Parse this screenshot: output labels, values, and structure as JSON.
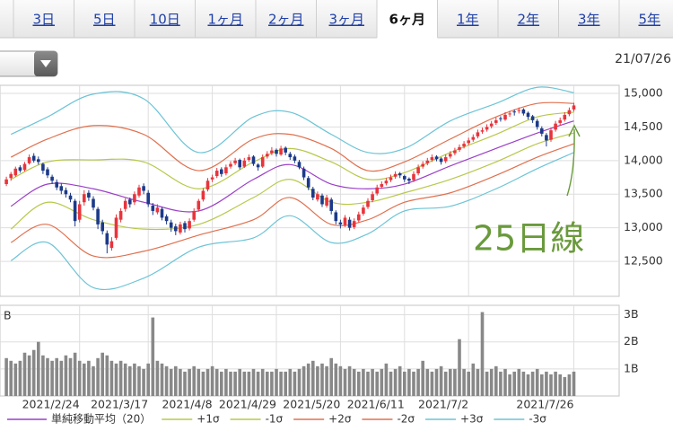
{
  "tabs": [
    "3日",
    "5日",
    "10日",
    "1ヶ月",
    "2ヶ月",
    "3ヶ月",
    "6ヶ月",
    "1年",
    "2年",
    "3年",
    "5年"
  ],
  "selected_tab": 6,
  "date": "21/07/26",
  "chart_data": {
    "type": "candlestick",
    "categories": [
      null,
      null,
      null,
      null,
      null,
      null,
      null,
      null,
      null,
      null,
      null,
      null,
      null,
      null,
      null,
      null,
      "2021/2/24",
      null,
      null,
      null,
      null,
      null,
      null,
      null,
      null,
      null,
      null,
      null,
      null,
      null,
      null,
      "2021/3/17",
      null,
      null,
      null,
      null,
      null,
      null,
      null,
      null,
      null,
      null,
      null,
      null,
      null,
      "2021/4/8",
      null,
      null,
      null,
      null,
      null,
      null,
      null,
      null,
      null,
      null,
      null,
      null,
      null,
      "2021/4/29",
      null,
      null,
      null,
      null,
      null,
      null,
      null,
      null,
      null,
      null,
      null,
      null,
      null,
      "2021/5/20",
      null,
      null,
      null,
      null,
      null,
      null,
      null,
      null,
      null,
      null,
      null,
      null,
      null,
      "2021/6/11",
      null,
      null,
      null,
      null,
      null,
      null,
      null,
      null,
      null,
      null,
      null,
      null,
      null,
      "2021/7/2",
      null,
      null,
      null,
      null,
      null,
      null,
      null,
      null,
      null,
      null,
      null,
      null,
      null,
      null,
      null,
      null,
      null,
      null,
      null,
      null,
      null,
      null,
      "2021/7/26"
    ],
    "ohlc": [
      [
        13650,
        13760,
        13620,
        13720
      ],
      [
        13740,
        13830,
        13700,
        13800
      ],
      [
        13780,
        13910,
        13760,
        13880
      ],
      [
        13900,
        13930,
        13820,
        13850
      ],
      [
        13860,
        13980,
        13840,
        13950
      ],
      [
        13960,
        14090,
        13940,
        14050
      ],
      [
        14070,
        14110,
        13970,
        14000
      ],
      [
        14020,
        14060,
        13940,
        13980
      ],
      [
        13950,
        13970,
        13800,
        13850
      ],
      [
        13870,
        13900,
        13740,
        13780
      ],
      [
        13760,
        13790,
        13650,
        13700
      ],
      [
        13680,
        13720,
        13560,
        13600
      ],
      [
        13620,
        13660,
        13500,
        13550
      ],
      [
        13560,
        13600,
        13450,
        13500
      ],
      [
        13480,
        13520,
        13380,
        13420
      ],
      [
        13400,
        13430,
        13020,
        13100
      ],
      [
        13120,
        13400,
        13080,
        13350
      ],
      [
        13380,
        13560,
        13330,
        13500
      ],
      [
        13520,
        13560,
        13400,
        13450
      ],
      [
        13430,
        13470,
        13260,
        13300
      ],
      [
        13280,
        13310,
        12980,
        13050
      ],
      [
        13080,
        13120,
        12900,
        12950
      ],
      [
        12920,
        12960,
        12620,
        12750
      ],
      [
        12700,
        12860,
        12660,
        12800
      ],
      [
        12850,
        13200,
        12820,
        13150
      ],
      [
        13120,
        13290,
        13080,
        13250
      ],
      [
        13280,
        13440,
        13240,
        13400
      ],
      [
        13420,
        13450,
        13300,
        13350
      ],
      [
        13380,
        13540,
        13340,
        13500
      ],
      [
        13480,
        13640,
        13450,
        13600
      ],
      [
        13620,
        13660,
        13500,
        13550
      ],
      [
        13520,
        13560,
        13310,
        13350
      ],
      [
        13330,
        13370,
        13190,
        13250
      ],
      [
        13230,
        13350,
        13200,
        13300
      ],
      [
        13280,
        13310,
        13110,
        13150
      ],
      [
        13170,
        13200,
        13050,
        13100
      ],
      [
        13080,
        13120,
        12940,
        13000
      ],
      [
        13020,
        13060,
        12890,
        12950
      ],
      [
        12930,
        13090,
        12900,
        13050
      ],
      [
        13070,
        13100,
        12930,
        12980
      ],
      [
        12990,
        13140,
        12960,
        13100
      ],
      [
        13120,
        13290,
        13090,
        13250
      ],
      [
        13270,
        13430,
        13240,
        13400
      ],
      [
        13420,
        13590,
        13390,
        13550
      ],
      [
        13570,
        13740,
        13540,
        13700
      ],
      [
        13720,
        13790,
        13680,
        13750
      ],
      [
        13770,
        13890,
        13740,
        13850
      ],
      [
        13870,
        13900,
        13760,
        13800
      ],
      [
        13810,
        13940,
        13780,
        13900
      ],
      [
        13910,
        13990,
        13880,
        13950
      ],
      [
        13960,
        14040,
        13930,
        14000
      ],
      [
        14010,
        14030,
        13870,
        13900
      ],
      [
        13910,
        14040,
        13890,
        14000
      ],
      [
        14010,
        14090,
        13980,
        14050
      ],
      [
        14060,
        14080,
        13920,
        13950
      ],
      [
        13940,
        13960,
        13850,
        13900
      ],
      [
        13910,
        14090,
        13890,
        14050
      ],
      [
        14060,
        14140,
        14030,
        14100
      ],
      [
        14110,
        14200,
        14080,
        14150
      ],
      [
        14160,
        14180,
        14060,
        14100
      ],
      [
        14090,
        14220,
        14070,
        14180
      ],
      [
        14190,
        14210,
        14080,
        14120
      ],
      [
        14100,
        14130,
        14010,
        14050
      ],
      [
        14060,
        14090,
        13960,
        14000
      ],
      [
        13980,
        14010,
        13870,
        13900
      ],
      [
        13880,
        13910,
        13710,
        13750
      ],
      [
        13740,
        13770,
        13560,
        13600
      ],
      [
        13580,
        13610,
        13410,
        13450
      ],
      [
        13420,
        13540,
        13390,
        13500
      ],
      [
        13480,
        13510,
        13310,
        13350
      ],
      [
        13330,
        13490,
        13300,
        13450
      ],
      [
        13420,
        13450,
        13200,
        13250
      ],
      [
        13230,
        13260,
        13050,
        13100
      ],
      [
        13080,
        13120,
        12990,
        13050
      ],
      [
        13040,
        13190,
        13010,
        13150
      ],
      [
        13120,
        13160,
        12960,
        13000
      ],
      [
        13010,
        13140,
        12980,
        13100
      ],
      [
        13110,
        13240,
        13080,
        13200
      ],
      [
        13210,
        13340,
        13180,
        13300
      ],
      [
        13310,
        13440,
        13280,
        13400
      ],
      [
        13410,
        13540,
        13380,
        13500
      ],
      [
        13510,
        13640,
        13480,
        13600
      ],
      [
        13610,
        13690,
        13580,
        13650
      ],
      [
        13660,
        13740,
        13630,
        13700
      ],
      [
        13710,
        13790,
        13680,
        13750
      ],
      [
        13760,
        13840,
        13730,
        13800
      ],
      [
        13810,
        13830,
        13740,
        13780
      ],
      [
        13770,
        13790,
        13680,
        13720
      ],
      [
        13730,
        13750,
        13650,
        13700
      ],
      [
        13710,
        13840,
        13680,
        13800
      ],
      [
        13810,
        13940,
        13780,
        13900
      ],
      [
        13910,
        13990,
        13880,
        13950
      ],
      [
        13960,
        14040,
        13930,
        14000
      ],
      [
        14010,
        14090,
        13980,
        14050
      ],
      [
        14060,
        14080,
        13990,
        14020
      ],
      [
        14030,
        14050,
        13940,
        13980
      ],
      [
        13990,
        14090,
        13960,
        14050
      ],
      [
        14060,
        14140,
        14030,
        14100
      ],
      [
        14110,
        14190,
        14080,
        14150
      ],
      [
        14160,
        14240,
        14130,
        14200
      ],
      [
        14210,
        14290,
        14180,
        14250
      ],
      [
        14260,
        14340,
        14230,
        14300
      ],
      [
        14310,
        14390,
        14280,
        14350
      ],
      [
        14360,
        14460,
        14330,
        14420
      ],
      [
        14430,
        14490,
        14400,
        14450
      ],
      [
        14460,
        14540,
        14430,
        14500
      ],
      [
        14510,
        14590,
        14480,
        14550
      ],
      [
        14560,
        14640,
        14530,
        14600
      ],
      [
        14630,
        14660,
        14580,
        14620
      ],
      [
        14610,
        14720,
        14590,
        14680
      ],
      [
        14690,
        14740,
        14650,
        14700
      ],
      [
        14730,
        14760,
        14670,
        14720
      ],
      [
        14740,
        14790,
        14700,
        14750
      ],
      [
        14760,
        14780,
        14670,
        14700
      ],
      [
        14710,
        14730,
        14610,
        14650
      ],
      [
        14660,
        14680,
        14560,
        14600
      ],
      [
        14590,
        14620,
        14460,
        14500
      ],
      [
        14480,
        14510,
        14360,
        14400
      ],
      [
        14380,
        14410,
        14210,
        14300
      ],
      [
        14310,
        14490,
        14280,
        14450
      ],
      [
        14460,
        14590,
        14430,
        14550
      ],
      [
        14560,
        14640,
        14530,
        14600
      ],
      [
        14610,
        14720,
        14580,
        14680
      ],
      [
        14690,
        14790,
        14660,
        14750
      ],
      [
        14760,
        14860,
        14730,
        14820
      ]
    ],
    "up_color": "#e8343c",
    "down_color": "#1c3a8a",
    "ylim": [
      11980,
      15120
    ],
    "yticks": [
      {
        "value": 12500,
        "label": "12,500"
      },
      {
        "value": 13000,
        "label": "13,000"
      },
      {
        "value": 13500,
        "label": "13,500"
      },
      {
        "value": 14000,
        "label": "14,000"
      },
      {
        "value": 14500,
        "label": "14,500"
      },
      {
        "value": 15000,
        "label": "15,000"
      }
    ],
    "grid": true,
    "band_x": [
      1,
      9,
      19,
      30,
      42,
      54,
      62,
      71,
      79,
      87,
      97,
      107,
      116,
      124
    ],
    "bands": [
      {
        "name": "単純移動平均（20）",
        "color": "#9b3fc8",
        "values": [
          13320,
          13650,
          13580,
          13380,
          13250,
          13720,
          13940,
          13650,
          13580,
          13650,
          13920,
          14180,
          14410,
          14590
        ]
      },
      {
        "name": "+1σ",
        "color": "#b8c84a",
        "values": [
          13720,
          13980,
          14010,
          13980,
          13580,
          13980,
          14180,
          13980,
          13720,
          13820,
          14120,
          14390,
          14650,
          14720
        ]
      },
      {
        "name": "-1σ",
        "color": "#b8c84a",
        "values": [
          12980,
          13380,
          13120,
          12980,
          13050,
          13450,
          13720,
          13380,
          13380,
          13520,
          13720,
          13980,
          14250,
          14410
        ]
      },
      {
        "name": "+2σ",
        "color": "#e0704e",
        "values": [
          14050,
          14320,
          14520,
          14390,
          13850,
          14320,
          14390,
          14180,
          13850,
          13980,
          14320,
          14650,
          14850,
          14850
        ]
      },
      {
        "name": "-2σ",
        "color": "#e0704e",
        "values": [
          12780,
          13050,
          12580,
          12650,
          12890,
          13120,
          13450,
          13050,
          13120,
          13380,
          13520,
          13780,
          14050,
          14250
        ]
      },
      {
        "name": "+3σ",
        "color": "#6cc4d6",
        "values": [
          14390,
          14650,
          14990,
          14920,
          14120,
          14650,
          14720,
          14390,
          14120,
          14180,
          14590,
          14850,
          15090,
          15010
        ]
      },
      {
        "name": "-3σ",
        "color": "#6cc4d6",
        "values": [
          12510,
          12780,
          12110,
          12250,
          12710,
          12850,
          13180,
          12780,
          12910,
          13250,
          13320,
          13580,
          13880,
          14120
        ]
      }
    ],
    "volume": {
      "unit": "B",
      "color": "#888888",
      "values": [
        1.4,
        1.3,
        1.2,
        1.3,
        1.6,
        1.5,
        1.7,
        2.0,
        1.5,
        1.4,
        1.3,
        1.4,
        1.3,
        1.5,
        1.4,
        1.6,
        1.3,
        1.2,
        1.3,
        1.1,
        1.4,
        1.6,
        1.5,
        1.3,
        1.2,
        1.3,
        1.2,
        1.1,
        1.2,
        1.1,
        1.0,
        1.2,
        2.9,
        1.3,
        1.2,
        1.1,
        1.0,
        1.1,
        1.0,
        0.9,
        1.0,
        1.1,
        1.0,
        0.9,
        1.0,
        1.1,
        1.0,
        0.9,
        1.0,
        0.9,
        0.9,
        1.0,
        0.9,
        0.9,
        1.0,
        0.9,
        1.0,
        0.9,
        0.9,
        1.0,
        0.9,
        0.9,
        1.0,
        0.9,
        1.0,
        1.1,
        1.2,
        1.3,
        1.1,
        1.2,
        1.1,
        1.4,
        1.2,
        1.1,
        1.0,
        1.1,
        1.0,
        0.9,
        1.0,
        0.9,
        1.0,
        0.9,
        1.0,
        1.2,
        0.9,
        1.0,
        1.1,
        0.9,
        1.0,
        0.9,
        1.0,
        1.3,
        1.0,
        0.9,
        1.0,
        1.1,
        0.9,
        1.0,
        1.0,
        2.1,
        1.0,
        0.9,
        1.2,
        1.0,
        3.1,
        0.9,
        1.0,
        1.1,
        0.9,
        1.0,
        0.8,
        0.9,
        1.0,
        0.9,
        0.8,
        0.9,
        1.0,
        0.8,
        0.9,
        0.8,
        0.9,
        0.8,
        0.7,
        0.8,
        0.9
      ],
      "ylim": [
        0,
        3.35
      ],
      "yticks": [
        {
          "value": 1,
          "label": "1B"
        },
        {
          "value": 2,
          "label": "2B"
        },
        {
          "value": 3,
          "label": "3B"
        }
      ]
    },
    "annotation": {
      "text": "25日線",
      "color": "#6a9a3c"
    }
  }
}
